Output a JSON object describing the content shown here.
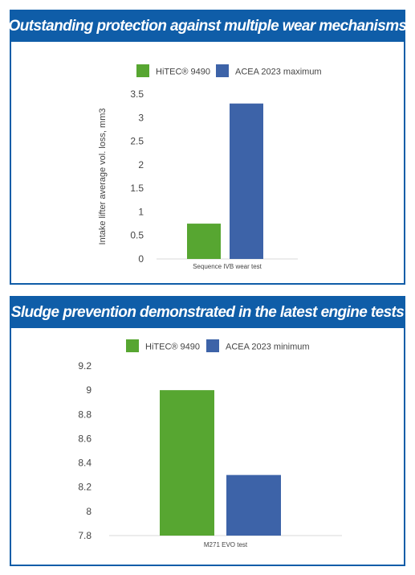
{
  "colors": {
    "header_bg": "#0f5da8",
    "header_text": "#ffffff",
    "border": "#0f5da8",
    "hitec": "#57a631",
    "acea": "#3d63a8",
    "axis": "#d9d9d9",
    "text": "#444444"
  },
  "chart_data": [
    {
      "type": "bar",
      "title": "Outstanding protection against multiple wear mechanisms",
      "ylabel": "Intake lifter average vol. loss, mm3",
      "xlabel": "",
      "categories": [
        "Sequence IVB wear test"
      ],
      "series": [
        {
          "name": "HiTEC® 9490",
          "values": [
            0.75
          ],
          "color": "#57a631"
        },
        {
          "name": "ACEA 2023 maximum",
          "values": [
            3.3
          ],
          "color": "#3d63a8"
        }
      ],
      "ylim": [
        0,
        3.5
      ],
      "yticks": [
        "0",
        "0.5",
        "1",
        "1.5",
        "2",
        "2.5",
        "3",
        "3.5"
      ],
      "grid": false,
      "legend_position": "top"
    },
    {
      "type": "bar",
      "title": "Sludge prevention demonstrated in the latest engine tests",
      "ylabel": "",
      "xlabel": "",
      "categories": [
        "M271 EVO test"
      ],
      "series": [
        {
          "name": "HiTEC® 9490",
          "values": [
            9.0
          ],
          "color": "#57a631"
        },
        {
          "name": "ACEA 2023 minimum",
          "values": [
            8.3
          ],
          "color": "#3d63a8"
        }
      ],
      "ylim": [
        7.8,
        9.2
      ],
      "yticks": [
        "7.8",
        "8",
        "8.2",
        "8.4",
        "8.6",
        "8.8",
        "9",
        "9.2"
      ],
      "grid": false,
      "legend_position": "top"
    }
  ]
}
